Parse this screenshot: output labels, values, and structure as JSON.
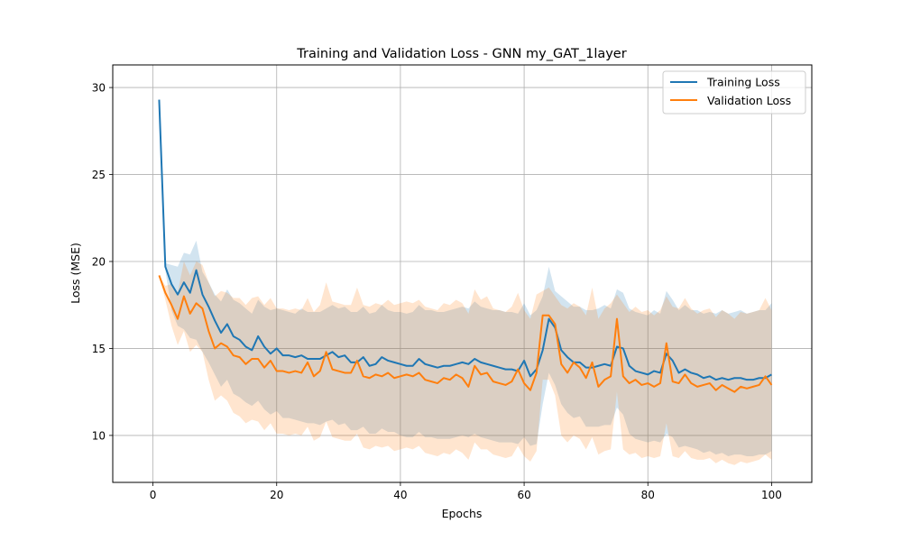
{
  "chart_data": {
    "type": "line",
    "title": "Training and Validation Loss - GNN my_GAT_1layer",
    "xlabel": "Epochs",
    "ylabel": "Loss (MSE)",
    "xlim": [
      -6.5,
      106.5
    ],
    "ylim": [
      7.3,
      31.3
    ],
    "xticks": [
      0,
      20,
      40,
      60,
      80,
      100
    ],
    "yticks": [
      10,
      15,
      20,
      25,
      30
    ],
    "grid": true,
    "legend_position": "upper right",
    "x": [
      1,
      2,
      3,
      4,
      5,
      6,
      7,
      8,
      9,
      10,
      11,
      12,
      13,
      14,
      15,
      16,
      17,
      18,
      19,
      20,
      21,
      22,
      23,
      24,
      25,
      26,
      27,
      28,
      29,
      30,
      31,
      32,
      33,
      34,
      35,
      36,
      37,
      38,
      39,
      40,
      41,
      42,
      43,
      44,
      45,
      46,
      47,
      48,
      49,
      50,
      51,
      52,
      53,
      54,
      55,
      56,
      57,
      58,
      59,
      60,
      61,
      62,
      63,
      64,
      65,
      66,
      67,
      68,
      69,
      70,
      71,
      72,
      73,
      74,
      75,
      76,
      77,
      78,
      79,
      80,
      81,
      82,
      83,
      84,
      85,
      86,
      87,
      88,
      89,
      90,
      91,
      92,
      93,
      94,
      95,
      96,
      97,
      98,
      99,
      100
    ],
    "series": [
      {
        "name": "Training Loss",
        "color": "#1f77b4",
        "band_opacity": 0.2,
        "values": [
          29.3,
          19.7,
          18.7,
          18.1,
          18.8,
          18.2,
          19.5,
          18.1,
          17.4,
          16.6,
          15.9,
          16.4,
          15.7,
          15.5,
          15.1,
          14.9,
          15.7,
          15.1,
          14.7,
          15.0,
          14.6,
          14.6,
          14.5,
          14.6,
          14.4,
          14.4,
          14.4,
          14.6,
          14.8,
          14.5,
          14.6,
          14.2,
          14.2,
          14.5,
          14.0,
          14.1,
          14.5,
          14.3,
          14.2,
          14.1,
          14.0,
          14.0,
          14.4,
          14.1,
          14.0,
          13.9,
          14.0,
          14.0,
          14.1,
          14.2,
          14.1,
          14.4,
          14.2,
          14.1,
          14.0,
          13.9,
          13.8,
          13.8,
          13.7,
          14.3,
          13.4,
          13.8,
          14.9,
          16.7,
          16.2,
          14.9,
          14.5,
          14.2,
          14.2,
          13.9,
          13.9,
          14.0,
          14.1,
          14.0,
          15.1,
          15.0,
          14.0,
          13.7,
          13.6,
          13.5,
          13.7,
          13.6,
          14.7,
          14.3,
          13.6,
          13.8,
          13.6,
          13.5,
          13.3,
          13.4,
          13.2,
          13.3,
          13.2,
          13.3,
          13.3,
          13.2,
          13.2,
          13.3,
          13.3,
          13.5
        ],
        "lower": [
          29.3,
          19.5,
          17.2,
          16.3,
          16.1,
          15.6,
          15.5,
          14.8,
          14.2,
          13.5,
          12.8,
          13.2,
          12.4,
          12.2,
          11.9,
          11.7,
          12.0,
          11.5,
          11.2,
          11.4,
          11.0,
          11.0,
          10.9,
          10.8,
          10.7,
          10.7,
          10.6,
          10.8,
          10.9,
          10.6,
          10.7,
          10.3,
          10.3,
          10.5,
          10.1,
          10.1,
          10.4,
          10.2,
          10.2,
          10.0,
          9.9,
          9.9,
          10.2,
          9.9,
          9.9,
          9.8,
          9.8,
          9.8,
          9.9,
          10.0,
          9.9,
          10.1,
          9.9,
          9.8,
          9.7,
          9.6,
          9.6,
          9.6,
          9.5,
          9.9,
          9.4,
          9.5,
          11.8,
          13.6,
          12.9,
          11.8,
          11.3,
          11.0,
          11.1,
          10.5,
          10.5,
          10.5,
          10.6,
          10.6,
          11.6,
          11.2,
          10.1,
          9.8,
          9.7,
          9.6,
          9.7,
          9.6,
          10.1,
          9.9,
          9.3,
          9.4,
          9.3,
          9.2,
          9.0,
          9.1,
          8.9,
          9.0,
          8.8,
          8.9,
          8.9,
          8.8,
          8.8,
          8.9,
          8.9,
          9.1
        ],
        "upper": [
          29.3,
          19.9,
          19.8,
          19.7,
          20.5,
          20.4,
          21.2,
          19.4,
          18.8,
          18.1,
          17.7,
          18.4,
          17.8,
          17.6,
          17.3,
          17.0,
          17.8,
          17.4,
          17.2,
          17.3,
          17.2,
          17.1,
          17.0,
          17.3,
          17.1,
          17.1,
          17.1,
          17.3,
          17.5,
          17.3,
          17.4,
          17.1,
          17.1,
          17.4,
          17.0,
          17.1,
          17.5,
          17.2,
          17.1,
          17.1,
          17.0,
          17.1,
          17.5,
          17.2,
          17.2,
          17.1,
          17.1,
          17.2,
          17.3,
          17.4,
          17.3,
          17.7,
          17.4,
          17.3,
          17.2,
          17.2,
          17.1,
          17.1,
          17.0,
          17.6,
          16.9,
          17.2,
          18.0,
          19.7,
          18.3,
          18.0,
          17.7,
          17.4,
          17.4,
          17.2,
          17.2,
          17.3,
          17.5,
          17.3,
          18.4,
          18.2,
          17.3,
          17.1,
          17.0,
          16.9,
          17.2,
          17.0,
          18.3,
          17.8,
          17.2,
          17.5,
          17.2,
          17.2,
          17.0,
          17.1,
          17.0,
          17.2,
          17.0,
          17.1,
          17.2,
          17.0,
          17.1,
          17.2,
          17.2,
          17.6
        ]
      },
      {
        "name": "Validation Loss",
        "color": "#ff7f0e",
        "band_opacity": 0.2,
        "values": [
          19.2,
          18.2,
          17.5,
          16.7,
          18.0,
          17.0,
          17.6,
          17.3,
          16.0,
          15.0,
          15.3,
          15.1,
          14.6,
          14.5,
          14.1,
          14.4,
          14.4,
          13.9,
          14.3,
          13.7,
          13.7,
          13.6,
          13.7,
          13.6,
          14.2,
          13.4,
          13.7,
          14.8,
          13.8,
          13.7,
          13.6,
          13.6,
          14.3,
          13.4,
          13.3,
          13.5,
          13.4,
          13.6,
          13.3,
          13.4,
          13.5,
          13.4,
          13.6,
          13.2,
          13.1,
          13.0,
          13.3,
          13.2,
          13.5,
          13.3,
          12.8,
          14.0,
          13.5,
          13.6,
          13.1,
          13.0,
          12.9,
          13.1,
          13.8,
          13.0,
          12.6,
          13.6,
          16.9,
          16.9,
          16.4,
          14.1,
          13.6,
          14.2,
          13.9,
          13.3,
          14.2,
          12.8,
          13.2,
          13.4,
          16.7,
          13.4,
          13.0,
          13.2,
          12.9,
          13.0,
          12.8,
          13.0,
          15.3,
          13.1,
          13.0,
          13.5,
          13.0,
          12.8,
          12.9,
          13.0,
          12.6,
          12.9,
          12.7,
          12.5,
          12.8,
          12.7,
          12.8,
          12.9,
          13.4,
          12.9
        ],
        "lower": [
          19.2,
          17.8,
          16.3,
          15.2,
          16.0,
          14.8,
          15.2,
          14.8,
          13.2,
          12.0,
          12.3,
          12.0,
          11.3,
          11.1,
          10.7,
          10.9,
          10.8,
          10.3,
          10.7,
          10.1,
          10.1,
          10.0,
          10.1,
          10.0,
          10.5,
          9.7,
          9.9,
          10.8,
          9.9,
          9.8,
          9.7,
          9.7,
          10.1,
          9.3,
          9.2,
          9.4,
          9.3,
          9.4,
          9.1,
          9.2,
          9.3,
          9.2,
          9.4,
          9.0,
          8.9,
          8.8,
          9.0,
          8.9,
          9.2,
          9.0,
          8.6,
          9.6,
          9.2,
          9.2,
          8.9,
          8.8,
          8.7,
          8.8,
          9.4,
          8.8,
          8.5,
          9.1,
          13.2,
          13.2,
          12.3,
          10.0,
          9.6,
          10.0,
          9.8,
          9.2,
          9.9,
          8.9,
          9.1,
          9.2,
          12.5,
          9.2,
          8.9,
          9.0,
          8.7,
          8.8,
          8.7,
          8.8,
          10.7,
          8.8,
          8.7,
          9.1,
          8.7,
          8.6,
          8.6,
          8.7,
          8.4,
          8.6,
          8.4,
          8.3,
          8.5,
          8.4,
          8.5,
          8.6,
          8.9,
          8.6
        ],
        "upper": [
          19.2,
          18.6,
          18.7,
          18.2,
          20.0,
          19.2,
          20.0,
          19.8,
          18.8,
          18.0,
          18.3,
          18.2,
          17.9,
          17.9,
          17.5,
          17.9,
          18.0,
          17.5,
          17.9,
          17.3,
          17.3,
          17.2,
          17.3,
          17.2,
          17.9,
          17.1,
          17.5,
          18.8,
          17.7,
          17.6,
          17.5,
          17.5,
          18.5,
          17.5,
          17.4,
          17.6,
          17.5,
          17.8,
          17.5,
          17.6,
          17.7,
          17.6,
          17.8,
          17.4,
          17.3,
          17.2,
          17.6,
          17.5,
          17.8,
          17.6,
          17.0,
          18.4,
          17.8,
          18.0,
          17.3,
          17.2,
          17.1,
          17.4,
          18.2,
          17.2,
          16.7,
          18.1,
          18.3,
          18.5,
          18.0,
          17.5,
          17.3,
          17.6,
          17.4,
          16.9,
          18.5,
          16.7,
          17.3,
          17.6,
          18.1,
          17.6,
          17.1,
          17.4,
          17.1,
          17.2,
          16.9,
          17.2,
          18.0,
          17.4,
          17.3,
          17.9,
          17.3,
          17.0,
          17.2,
          17.3,
          16.8,
          17.2,
          17.0,
          16.7,
          17.1,
          17.0,
          17.1,
          17.2,
          17.9,
          17.2
        ]
      }
    ]
  }
}
